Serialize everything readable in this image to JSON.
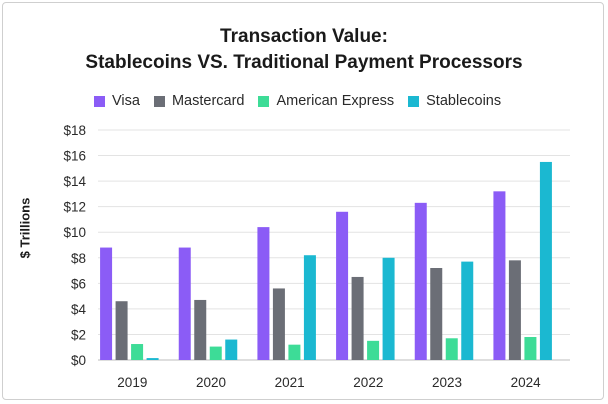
{
  "chart_data": {
    "type": "bar",
    "title": "Transaction Value:",
    "subtitle": "Stablecoins VS. Traditional Payment Processors",
    "ylabel": "$ Trillions",
    "xlabel": "",
    "categories": [
      "2019",
      "2020",
      "2021",
      "2022",
      "2023",
      "2024"
    ],
    "ylim": [
      0,
      18
    ],
    "yticks": [
      "$0",
      "$2",
      "$4",
      "$6",
      "$8",
      "$10",
      "$12",
      "$14",
      "$16",
      "$18"
    ],
    "grid": true,
    "legend_position": "top",
    "series": [
      {
        "name": "Visa",
        "color": "#8b5cf6",
        "values": [
          8.8,
          8.8,
          10.4,
          11.6,
          12.3,
          13.2
        ]
      },
      {
        "name": "Mastercard",
        "color": "#6b6e76",
        "values": [
          4.6,
          4.7,
          5.6,
          6.5,
          7.2,
          7.8
        ]
      },
      {
        "name": "American Express",
        "color": "#3ddc97",
        "values": [
          1.25,
          1.05,
          1.2,
          1.5,
          1.7,
          1.8
        ]
      },
      {
        "name": "Stablecoins",
        "color": "#1bb8d1",
        "values": [
          0.15,
          1.6,
          8.2,
          8.0,
          7.7,
          15.5
        ]
      }
    ]
  }
}
